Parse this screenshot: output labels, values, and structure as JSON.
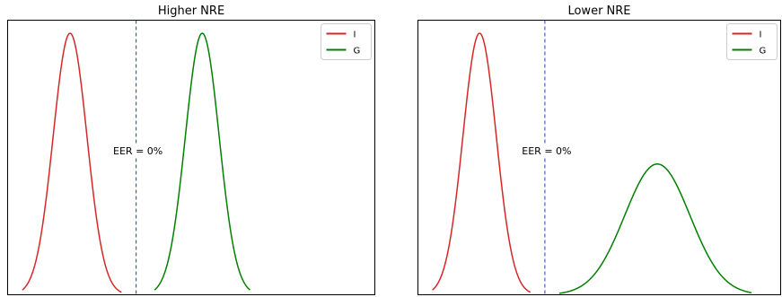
{
  "chart_data": [
    {
      "type": "line",
      "title": "Higher NRE",
      "xlabel": "",
      "ylabel": "",
      "xlim": [
        0,
        100
      ],
      "ylim": [
        0,
        1.05
      ],
      "grid": false,
      "legend_position": "top-right",
      "annotation": "EER = 0%",
      "threshold_x": 35,
      "series": [
        {
          "name": "I",
          "color": "#d62728",
          "mean": 17,
          "sd": 4.6,
          "peak": 1.0,
          "xrange": [
            4,
            31
          ]
        },
        {
          "name": "G",
          "color": "#008000",
          "mean": 53,
          "sd": 4.6,
          "peak": 1.0,
          "xrange": [
            40,
            66
          ]
        }
      ]
    },
    {
      "type": "line",
      "title": "Lower NRE",
      "xlabel": "",
      "ylabel": "",
      "xlim": [
        0,
        100
      ],
      "ylim": [
        0,
        1.05
      ],
      "grid": false,
      "legend_position": "top-right",
      "annotation": "EER = 0%",
      "threshold_x": 35,
      "series": [
        {
          "name": "I",
          "color": "#d62728",
          "mean": 17,
          "sd": 4.6,
          "peak": 1.0,
          "xrange": [
            4,
            31
          ]
        },
        {
          "name": "G",
          "color": "#008000",
          "mean": 66,
          "sd": 9.0,
          "peak": 0.5,
          "xrange": [
            39,
            92
          ]
        }
      ]
    }
  ]
}
